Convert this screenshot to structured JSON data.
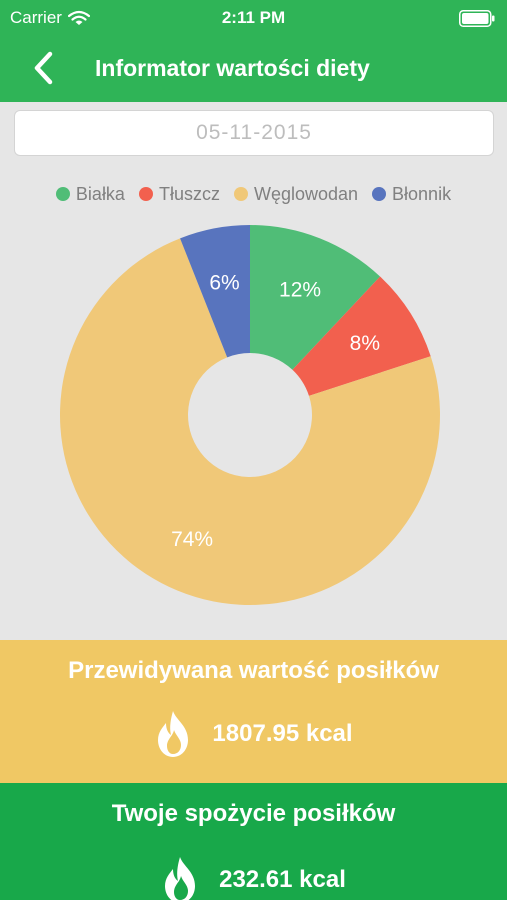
{
  "status_bar": {
    "carrier": "Carrier",
    "time": "2:11 PM"
  },
  "nav": {
    "title": "Informator wartości diety",
    "back_icon": "chevron-left-icon"
  },
  "date_field": {
    "value": "05-11-2015"
  },
  "chart_data": {
    "type": "pie",
    "donut": true,
    "legend_position": "top",
    "categories": [
      "Białka",
      "Tłuszcz",
      "Węglowodan",
      "Błonnik"
    ],
    "values": [
      12,
      8,
      74,
      6
    ],
    "labels": [
      "12%",
      "8%",
      "74%",
      "6%"
    ],
    "colors": [
      "#50bd77",
      "#f2604e",
      "#f0c878",
      "#5874be"
    ]
  },
  "predicted": {
    "title": "Przewidywana wartość posiłków",
    "value": "1807.95 kcal",
    "icon": "flame-icon",
    "color": "#f0c864"
  },
  "intake": {
    "title": "Twoje spożycie posiłków",
    "value": "232.61 kcal",
    "icon": "flame-icon",
    "color": "#18a84a"
  },
  "colors": {
    "accent": "#2fb457",
    "background": "#e6e6e6"
  }
}
